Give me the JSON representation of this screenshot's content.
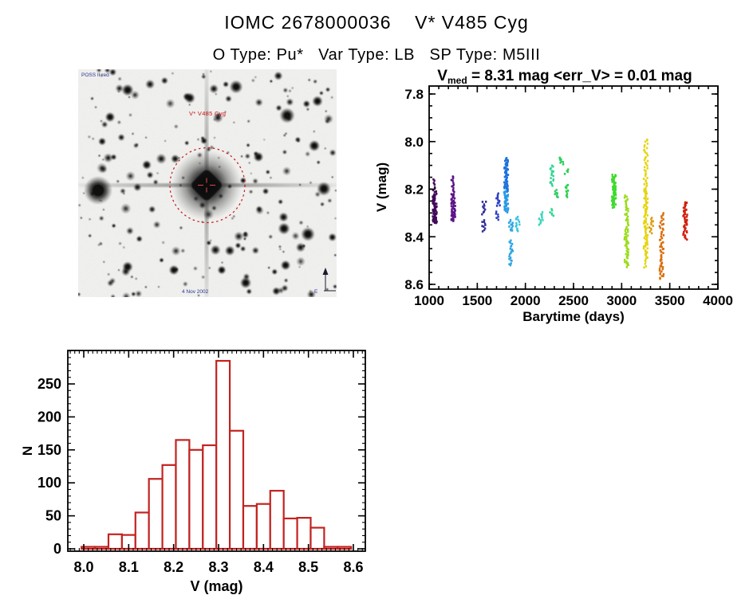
{
  "page": {
    "title": "IOMC 2678000036    V* V485 Cyg",
    "subtitle": "O Type: Pu*   Var Type: LB   SP Type: M5III"
  },
  "finding_chart": {
    "survey_text": "POSS II red",
    "target_label": "V* V485 Cyg",
    "footer_text": "4 Nov 2002",
    "compass_east_label": "E",
    "marker_color": "#c81414",
    "annotation_color": "#2a3390"
  },
  "chart_data": [
    {
      "id": "light_curve",
      "type": "scatter",
      "title": "V_med = 8.31 mag <err_V> = 0.01 mag",
      "title_parts": {
        "prefix": "V",
        "sub": "med",
        "rest": " = 8.31 mag <err_V> = 0.01 mag"
      },
      "xlabel": "Barytime (days)",
      "ylabel": "V (mag)",
      "x_range": [
        1000,
        4000
      ],
      "y_range": [
        7.8,
        8.6
      ],
      "y_axis_inverted": true,
      "x_ticks": [
        "1000",
        "1500",
        "2000",
        "2500",
        "3000",
        "3500",
        "4000"
      ],
      "y_ticks": [
        "7.8",
        "8.0",
        "8.2",
        "8.4",
        "8.6"
      ],
      "x_minor_step": 100,
      "y_minor_step": 0.05,
      "grid": false,
      "legend": "none",
      "clusters": [
        {
          "t": 1058,
          "color": "#40095a",
          "segments": [
            [
              8.16,
              8.225,
              12
            ],
            [
              8.225,
              8.345,
              70
            ]
          ]
        },
        {
          "t": 1250,
          "color": "#5c1488",
          "segments": [
            [
              8.145,
              8.22,
              14
            ],
            [
              8.22,
              8.335,
              55
            ]
          ]
        },
        {
          "t": 1570,
          "color": "#32309c",
          "segments": [
            [
              8.25,
              8.305,
              10
            ],
            [
              8.33,
              8.375,
              10
            ]
          ]
        },
        {
          "t": 1715,
          "color": "#2c3ec4",
          "segments": [
            [
              8.22,
              8.27,
              12
            ],
            [
              8.295,
              8.33,
              6
            ]
          ]
        },
        {
          "t": 1800,
          "color": "#1c72dd",
          "segments": [
            [
              8.07,
              8.21,
              55
            ],
            [
              8.21,
              8.295,
              40,
              "#2a9ae6"
            ]
          ]
        },
        {
          "t": 1848,
          "color": "#2fa6e4",
          "segments": [
            [
              8.33,
              8.375,
              12
            ],
            [
              8.415,
              8.52,
              20
            ]
          ]
        },
        {
          "t": 1920,
          "color": "#38c4de",
          "segments": [
            [
              8.315,
              8.375,
              12
            ]
          ]
        },
        {
          "t": 2160,
          "color": "#3bd6bd",
          "segments": [
            [
              8.3,
              8.35,
              12
            ]
          ]
        },
        {
          "t": 2276,
          "color": "#2ed694",
          "segments": [
            [
              8.1,
              8.185,
              16
            ],
            [
              8.285,
              8.31,
              6
            ]
          ]
        },
        {
          "t": 2326,
          "color": "#2bcf63",
          "segments": [
            [
              8.205,
              8.235,
              8
            ]
          ]
        },
        {
          "t": 2375,
          "color": "#2bcf5c",
          "segments": [
            [
              8.065,
              8.095,
              8
            ]
          ]
        },
        {
          "t": 2430,
          "color": "#2fd052",
          "segments": [
            [
              8.12,
              8.135,
              4
            ],
            [
              8.18,
              8.235,
              10
            ]
          ]
        },
        {
          "t": 2920,
          "color": "#3eda2e",
          "segments": [
            [
              8.14,
              8.275,
              65
            ]
          ]
        },
        {
          "t": 3050,
          "color": "#9bdc1c",
          "segments": [
            [
              8.225,
              8.37,
              28
            ],
            [
              8.37,
              8.525,
              40
            ]
          ]
        },
        {
          "t": 3250,
          "color": "#e6d410",
          "segments": [
            [
              7.99,
              8.2,
              35
            ],
            [
              8.2,
              8.49,
              75
            ],
            [
              8.49,
              8.53,
              6
            ]
          ]
        },
        {
          "t": 3308,
          "color": "#df9f0e",
          "segments": [
            [
              8.32,
              8.385,
              12
            ]
          ]
        },
        {
          "t": 3415,
          "color": "#db6f0c",
          "segments": [
            [
              8.3,
              8.45,
              28
            ],
            [
              8.45,
              8.575,
              32
            ]
          ]
        },
        {
          "t": 3660,
          "color": "#d0200c",
          "segments": [
            [
              8.255,
              8.41,
              50
            ]
          ]
        }
      ]
    },
    {
      "id": "histogram",
      "type": "bar",
      "xlabel": "V (mag)",
      "ylabel": "N",
      "bar_color": "#c22320",
      "bin_start": 7.995,
      "bin_width": 0.03,
      "values": [
        3,
        3,
        22,
        21,
        55,
        106,
        127,
        165,
        150,
        157,
        285,
        179,
        65,
        68,
        88,
        46,
        47,
        32,
        3,
        3
      ],
      "x_ticks": [
        "8.0",
        "8.1",
        "8.2",
        "8.3",
        "8.4",
        "8.5",
        "8.6"
      ],
      "y_ticks": [
        "0",
        "50",
        "100",
        "150",
        "200",
        "250"
      ],
      "x_minor_step": 0.01,
      "y_minor_step": 10,
      "xlim": [
        7.9645,
        8.6266
      ],
      "ylim": [
        0,
        300
      ],
      "grid": false
    }
  ]
}
